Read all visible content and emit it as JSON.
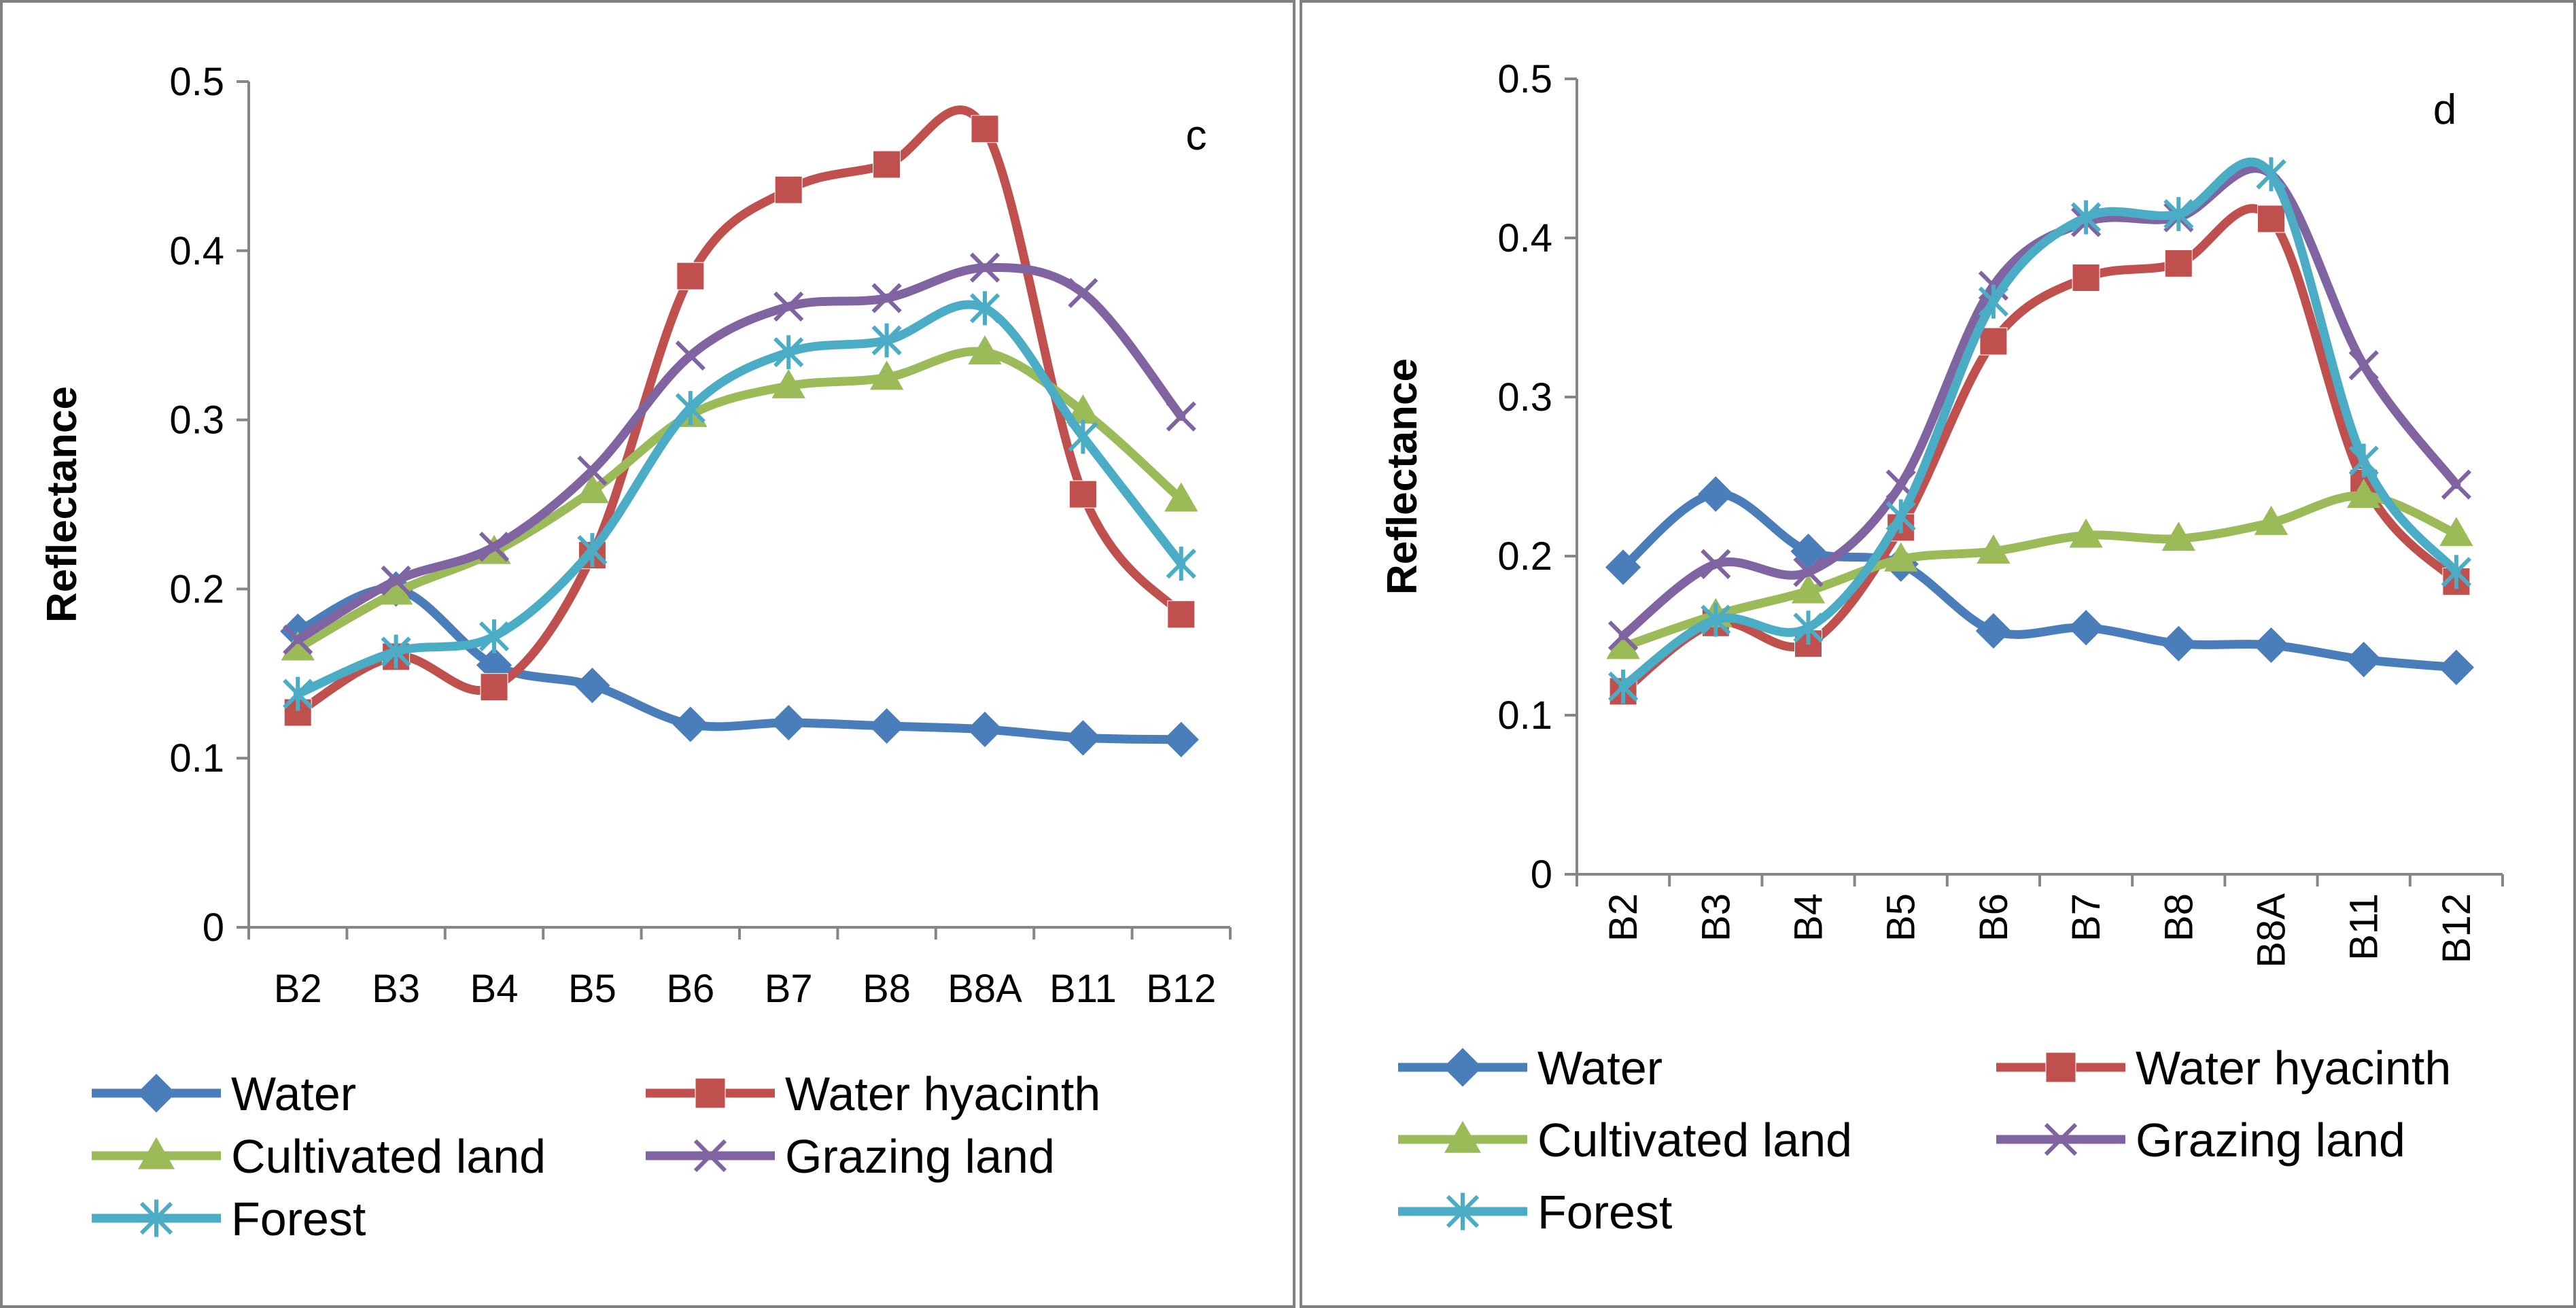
{
  "chart_data": [
    {
      "type": "line",
      "panel_label": "c",
      "title": "",
      "xlabel": "",
      "ylabel": "Reflectance",
      "ylim": [
        0,
        0.5
      ],
      "yticks": [
        "0",
        "0.1",
        "0.2",
        "0.3",
        "0.4",
        "0.5"
      ],
      "categories": [
        "B2",
        "B3",
        "B4",
        "B5",
        "B6",
        "B7",
        "B8",
        "B8A",
        "B11",
        "B12"
      ],
      "x_tick_rotation": "horizontal",
      "legend_position": "bottom",
      "grid": false,
      "series": [
        {
          "name": "Water",
          "color": "#4a7ebb",
          "marker": "diamond",
          "values": [
            0.175,
            0.2,
            0.155,
            0.143,
            0.12,
            0.121,
            0.119,
            0.117,
            0.112,
            0.111
          ]
        },
        {
          "name": "Water hyacinth",
          "color": "#c0504d",
          "marker": "square",
          "values": [
            0.127,
            0.16,
            0.142,
            0.22,
            0.385,
            0.436,
            0.451,
            0.472,
            0.256,
            0.185
          ]
        },
        {
          "name": "Cultivated land",
          "color": "#9bbb59",
          "marker": "triangle",
          "values": [
            0.165,
            0.198,
            0.222,
            0.258,
            0.303,
            0.32,
            0.325,
            0.34,
            0.305,
            0.253
          ]
        },
        {
          "name": "Grazing land",
          "color": "#8064a2",
          "marker": "x",
          "values": [
            0.17,
            0.205,
            0.225,
            0.27,
            0.338,
            0.367,
            0.372,
            0.39,
            0.375,
            0.302
          ]
        },
        {
          "name": "Forest",
          "color": "#4bacc6",
          "marker": "star",
          "values": [
            0.138,
            0.163,
            0.172,
            0.223,
            0.307,
            0.34,
            0.347,
            0.366,
            0.29,
            0.215
          ]
        }
      ]
    },
    {
      "type": "line",
      "panel_label": "d",
      "title": "",
      "xlabel": "",
      "ylabel": "Reflectance",
      "ylim": [
        0,
        0.5
      ],
      "yticks": [
        "0",
        "0.1",
        "0.2",
        "0.3",
        "0.4",
        "0.5"
      ],
      "categories": [
        "B2",
        "B3",
        "B4",
        "B5",
        "B6",
        "B7",
        "B8",
        "B8A",
        "B11",
        "B12"
      ],
      "x_tick_rotation": "vertical",
      "legend_position": "bottom",
      "grid": false,
      "series": [
        {
          "name": "Water",
          "color": "#4a7ebb",
          "marker": "diamond",
          "values": [
            0.193,
            0.239,
            0.203,
            0.195,
            0.153,
            0.155,
            0.145,
            0.144,
            0.135,
            0.13
          ]
        },
        {
          "name": "Water hyacinth",
          "color": "#c0504d",
          "marker": "square",
          "values": [
            0.115,
            0.158,
            0.145,
            0.218,
            0.335,
            0.375,
            0.384,
            0.412,
            0.246,
            0.184
          ]
        },
        {
          "name": "Cultivated land",
          "color": "#9bbb59",
          "marker": "triangle",
          "values": [
            0.143,
            0.163,
            0.178,
            0.198,
            0.203,
            0.213,
            0.211,
            0.221,
            0.238,
            0.214
          ]
        },
        {
          "name": "Grazing land",
          "color": "#8064a2",
          "marker": "x",
          "values": [
            0.15,
            0.195,
            0.19,
            0.245,
            0.37,
            0.41,
            0.413,
            0.44,
            0.32,
            0.245
          ]
        },
        {
          "name": "Forest",
          "color": "#4bacc6",
          "marker": "star",
          "values": [
            0.118,
            0.16,
            0.155,
            0.225,
            0.36,
            0.413,
            0.415,
            0.44,
            0.26,
            0.19
          ]
        }
      ]
    }
  ],
  "colors": {
    "axis": "#868686",
    "border": "#808080",
    "text": "#000000"
  }
}
